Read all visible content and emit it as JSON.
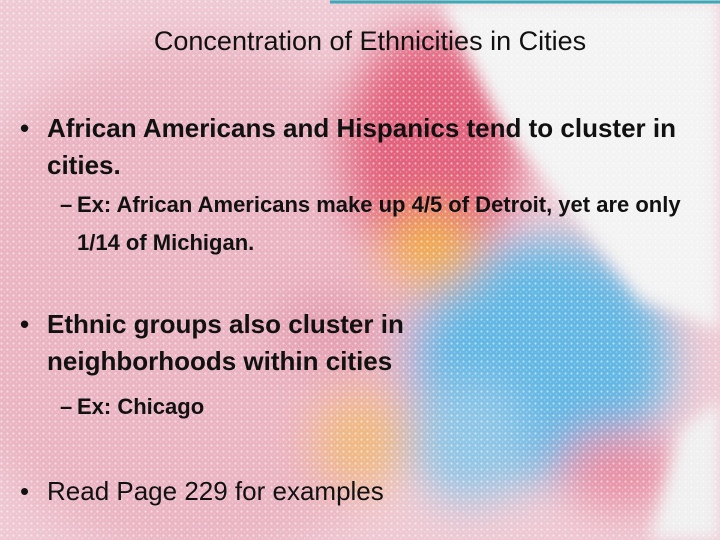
{
  "slide": {
    "title": "Concentration of Ethnicities in Cities",
    "bullets": [
      {
        "text": "African Americans and Hispanics tend to cluster in cities.",
        "sub": [
          "Ex: African Americans make up 4/5 of Detroit, yet are only 1/14 of Michigan."
        ]
      },
      {
        "text": "Ethnic groups also cluster in neighborhoods within cities",
        "sub": [
          "Ex: Chicago"
        ]
      },
      {
        "text": "Read Page 229 for examples",
        "sub": []
      }
    ]
  }
}
